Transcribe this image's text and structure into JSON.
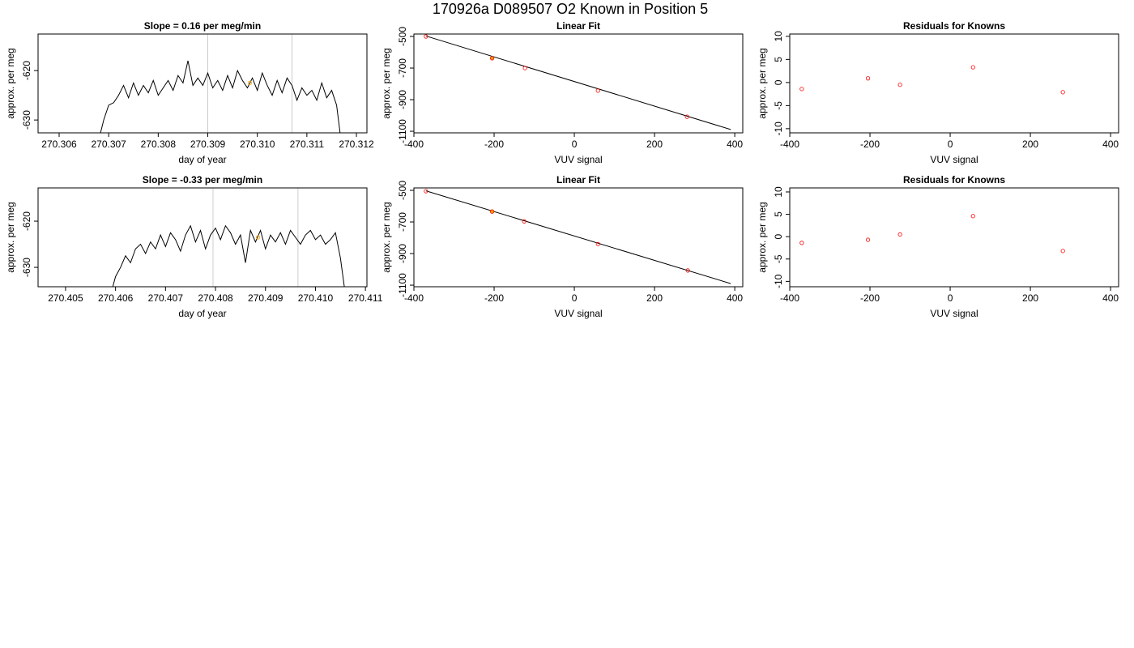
{
  "title": "170926a     D089507   O2 Known in Position  5",
  "chart_data": [
    {
      "type": "line",
      "title": "Slope =  0.16  per meg/min",
      "xlabel": "day of year",
      "ylabel": "approx. per meg",
      "xlim": [
        270.305575,
        270.312212
      ],
      "xticks": [
        270.306,
        270.307,
        270.308,
        270.309,
        {
          "value": 270.31,
          "label": "270.310"
        },
        270.311,
        270.312
      ],
      "ylim": [
        -632.6,
        -612.6
      ],
      "yticks": [
        -620,
        -630
      ],
      "vlines": [
        270.309,
        270.3107
      ],
      "vline_color": "#cccccc",
      "series": [
        {
          "style": "line",
          "color": "#000000",
          "x": [
            270.3068,
            270.3069,
            270.307,
            270.3071,
            270.3072,
            270.3073,
            270.3074,
            270.3075,
            270.3076,
            270.3077,
            270.3078,
            270.3079,
            270.308,
            270.3081,
            270.3082,
            270.3083,
            270.3084,
            270.3085,
            270.3086,
            270.3087,
            270.3088,
            270.3089,
            270.309,
            270.3091,
            270.3092,
            270.3093,
            270.3094,
            270.3095,
            270.3096,
            270.3097,
            270.3098,
            270.3099,
            270.31,
            270.3101,
            270.3102,
            270.3103,
            270.3104,
            270.3105,
            270.3106,
            270.3107,
            270.3108,
            270.3109,
            270.311,
            270.3111,
            270.3112,
            270.3113,
            270.3114,
            270.3115,
            270.3116,
            270.3117
          ],
          "values": [
            -634,
            -630,
            -627,
            -626.5,
            -625,
            -623,
            -625.5,
            -622.5,
            -625,
            -623,
            -624.5,
            -622,
            -625,
            -623.5,
            -622,
            -624,
            -621,
            -622.5,
            -618,
            -623,
            -621.5,
            -623,
            -620.5,
            -623.5,
            -622,
            -624,
            -621,
            -623.5,
            -620,
            -622,
            -623.5,
            -621.5,
            -624,
            -620.5,
            -623,
            -625,
            -622,
            -624.5,
            -621.5,
            -623,
            -626,
            -623.5,
            -625,
            -624,
            -626,
            -622.5,
            -625.5,
            -624,
            -627,
            -635
          ]
        },
        {
          "style": "points",
          "color": "#ffa500",
          "x": [
            270.30985
          ],
          "values": [
            -622.5
          ]
        }
      ]
    },
    {
      "type": "scatter",
      "title": "Linear Fit",
      "xlabel": "VUV signal",
      "ylabel": "approx. per meg",
      "xlim": [
        -400,
        420
      ],
      "xticks": [
        -400,
        -200,
        0,
        200,
        400
      ],
      "ylim": [
        -1110,
        -484.6
      ],
      "yticks": [
        -500,
        -700,
        -900,
        -1100
      ],
      "series": [
        {
          "style": "line",
          "color": "#000000",
          "x": [
            -370,
            390
          ],
          "values": [
            -497,
            -1089
          ]
        },
        {
          "style": "points",
          "color": "#ffa500",
          "fill": "#ffa500",
          "x": [
            -205
          ],
          "values": [
            -638
          ]
        },
        {
          "style": "points",
          "color": "#ff0000",
          "x": [
            -370,
            -205,
            -123,
            59,
            281
          ],
          "values": [
            -500,
            -638,
            -700,
            -843,
            -1008
          ]
        }
      ]
    },
    {
      "type": "scatter",
      "title": "Residuals for Knowns",
      "xlabel": "VUV signal",
      "ylabel": "approx. per meg",
      "xlim": [
        -400,
        420
      ],
      "xticks": [
        -400,
        -200,
        0,
        200,
        400
      ],
      "ylim": [
        -10.9,
        10.5
      ],
      "yticks": [
        -10,
        -5,
        0,
        5,
        10
      ],
      "series": [
        {
          "style": "points",
          "color": "#ff0000",
          "x": [
            -370,
            -205,
            -125,
            57,
            281
          ],
          "values": [
            -1.4,
            0.9,
            -0.5,
            3.3,
            -2.1
          ]
        }
      ]
    },
    {
      "type": "line",
      "title": "Slope =  -0.33  per meg/min",
      "xlabel": "day of year",
      "ylabel": "approx. per meg",
      "xlim": [
        270.40445,
        270.41103
      ],
      "xticks": [
        270.405,
        270.406,
        270.407,
        270.408,
        270.409,
        {
          "value": 270.41,
          "label": "270.410"
        },
        270.411
      ],
      "ylim": [
        -634.2,
        -612.8
      ],
      "yticks": [
        -620,
        -630
      ],
      "vlines": [
        270.40795,
        270.40965
      ],
      "vline_color": "#cccccc",
      "series": [
        {
          "style": "line",
          "color": "#000000",
          "x": [
            270.4059,
            270.406,
            270.4061,
            270.4062,
            270.4063,
            270.4064,
            270.4065,
            270.4066,
            270.4067,
            270.4068,
            270.4069,
            270.407,
            270.4071,
            270.4072,
            270.4073,
            270.4074,
            270.4075,
            270.4076,
            270.4077,
            270.4078,
            270.4079,
            270.408,
            270.4081,
            270.4082,
            270.4083,
            270.4084,
            270.4085,
            270.4086,
            270.4087,
            270.4088,
            270.4089,
            270.409,
            270.4091,
            270.4092,
            270.4093,
            270.4094,
            270.4095,
            270.4096,
            270.4097,
            270.4098,
            270.4099,
            270.41,
            270.4101,
            270.4102,
            270.4103,
            270.4104,
            270.4105,
            270.4106
          ],
          "values": [
            -636,
            -632,
            -630,
            -627.5,
            -629,
            -626,
            -625,
            -627,
            -624.5,
            -626,
            -623,
            -625.5,
            -622.5,
            -624,
            -626.5,
            -623,
            -621,
            -624.5,
            -622,
            -626,
            -623,
            -621.5,
            -624,
            -621,
            -622.5,
            -625,
            -623,
            -629,
            -622,
            -624.5,
            -622,
            -626,
            -623,
            -624.5,
            -622.5,
            -625,
            -622,
            -623.5,
            -625,
            -623,
            -622,
            -624,
            -623,
            -625,
            -624,
            -622.5,
            -628,
            -636
          ]
        },
        {
          "style": "points",
          "color": "#ffa500",
          "x": [
            270.40885
          ],
          "values": [
            -623.5
          ]
        }
      ]
    },
    {
      "type": "scatter",
      "title": "Linear Fit",
      "xlabel": "VUV signal",
      "ylabel": "approx. per meg",
      "xlim": [
        -400,
        420
      ],
      "xticks": [
        -400,
        -200,
        0,
        200,
        400
      ],
      "ylim": [
        -1110,
        -484.6
      ],
      "yticks": [
        -500,
        -700,
        -900,
        -1100
      ],
      "series": [
        {
          "style": "line",
          "color": "#000000",
          "x": [
            -370,
            390
          ],
          "values": [
            -503,
            -1090
          ]
        },
        {
          "style": "points",
          "color": "#ffa500",
          "fill": "#ffa500",
          "x": [
            -205
          ],
          "values": [
            -634
          ]
        },
        {
          "style": "points",
          "color": "#ff0000",
          "x": [
            -370,
            -205,
            -125,
            59,
            283
          ],
          "values": [
            -505,
            -634,
            -696,
            -840,
            -1007
          ]
        }
      ]
    },
    {
      "type": "scatter",
      "title": "Residuals for Knowns",
      "xlabel": "VUV signal",
      "ylabel": "approx. per meg",
      "xlim": [
        -400,
        420
      ],
      "xticks": [
        -400,
        -200,
        0,
        200,
        400
      ],
      "ylim": [
        -11.2,
        10.9
      ],
      "yticks": [
        -10,
        -5,
        0,
        5,
        10
      ],
      "series": [
        {
          "style": "points",
          "color": "#ff0000",
          "x": [
            -370,
            -205,
            -125,
            57,
            281
          ],
          "values": [
            -1.4,
            -0.7,
            0.5,
            4.6,
            -3.2
          ]
        }
      ]
    }
  ]
}
